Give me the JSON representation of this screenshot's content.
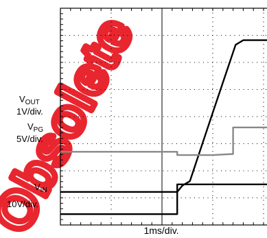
{
  "chart_data": {
    "type": "line",
    "title": "",
    "xlabel": "1ms/div.",
    "ylabel": "",
    "x_divisions": 8,
    "y_divisions": 8,
    "grid": true,
    "colors": {
      "background": "#ffffff",
      "grid": "#000000",
      "trace_dark": "#000000",
      "trace_gray": "#888888",
      "watermark": "#e8262f"
    },
    "series": [
      {
        "name": "VOUT",
        "label_main": "V",
        "label_sub": "OUT",
        "scale": "1V/div.",
        "color": "#000000",
        "x": [
          0,
          2.3,
          2.4,
          2.55,
          3.0,
          3.45,
          3.6,
          4.8,
          5.95,
          6.55
        ],
        "y": [
          1.22,
          1.22,
          1.45,
          1.62,
          4.15,
          6.65,
          6.82,
          6.82,
          6.8,
          6.8
        ]
      },
      {
        "name": "VPG",
        "label_main": "V",
        "label_sub": "PG",
        "scale": "5V/div.",
        "color": "#888888",
        "x": [
          0,
          2.3,
          2.3,
          3.0,
          3.4,
          3.4,
          6.55
        ],
        "y": [
          2.7,
          2.7,
          2.58,
          2.58,
          2.62,
          3.6,
          3.6
        ]
      },
      {
        "name": "VIN",
        "label_main": "V",
        "label_sub": "IN",
        "scale": "10V/div.",
        "color": "#000000",
        "x": [
          0,
          2.3,
          2.3,
          6.55
        ],
        "y": [
          0.4,
          0.4,
          1.5,
          1.5
        ]
      }
    ]
  },
  "watermark": {
    "text": "Obsolete",
    "color": "#e8262f"
  }
}
